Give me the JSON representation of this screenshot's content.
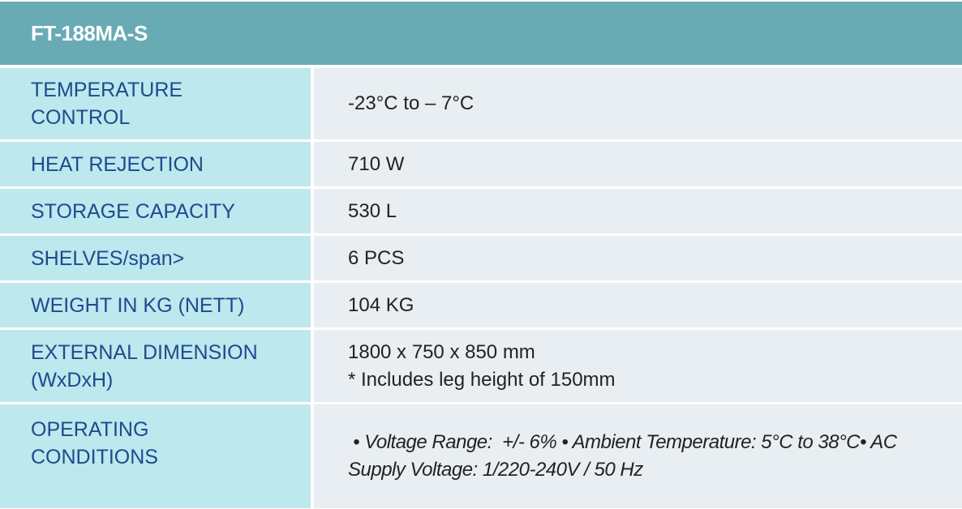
{
  "title": "FT-188MA-S",
  "rows": [
    {
      "label": "TEMPERATURE CONTROL",
      "value": "-23°C to – 7°C"
    },
    {
      "label": "HEAT REJECTION",
      "value": "710 W"
    },
    {
      "label": "STORAGE CAPACITY",
      "value": "530 L"
    },
    {
      "label": "SHELVES/span>",
      "value": "6 PCS"
    },
    {
      "label": "WEIGHT IN KG (NETT)",
      "value": "104 KG"
    },
    {
      "label": "EXTERNAL DIMENSION (WxDxH)",
      "value": "1800 x 750 x 850 mm",
      "note": "* Includes leg height of 150mm"
    },
    {
      "label": "OPERATING CONDITIONS",
      "value": " • Voltage Range:  +/- 6% • Ambient Temperature: 5°C to 38°C• AC Supply Voltage: 1/220-240V / 50 Hz"
    }
  ],
  "colors": {
    "header": "#68abb5",
    "label_bg": "#bce8ee",
    "value_bg": "#e8eef1",
    "label_text": "#1f4a8c"
  }
}
